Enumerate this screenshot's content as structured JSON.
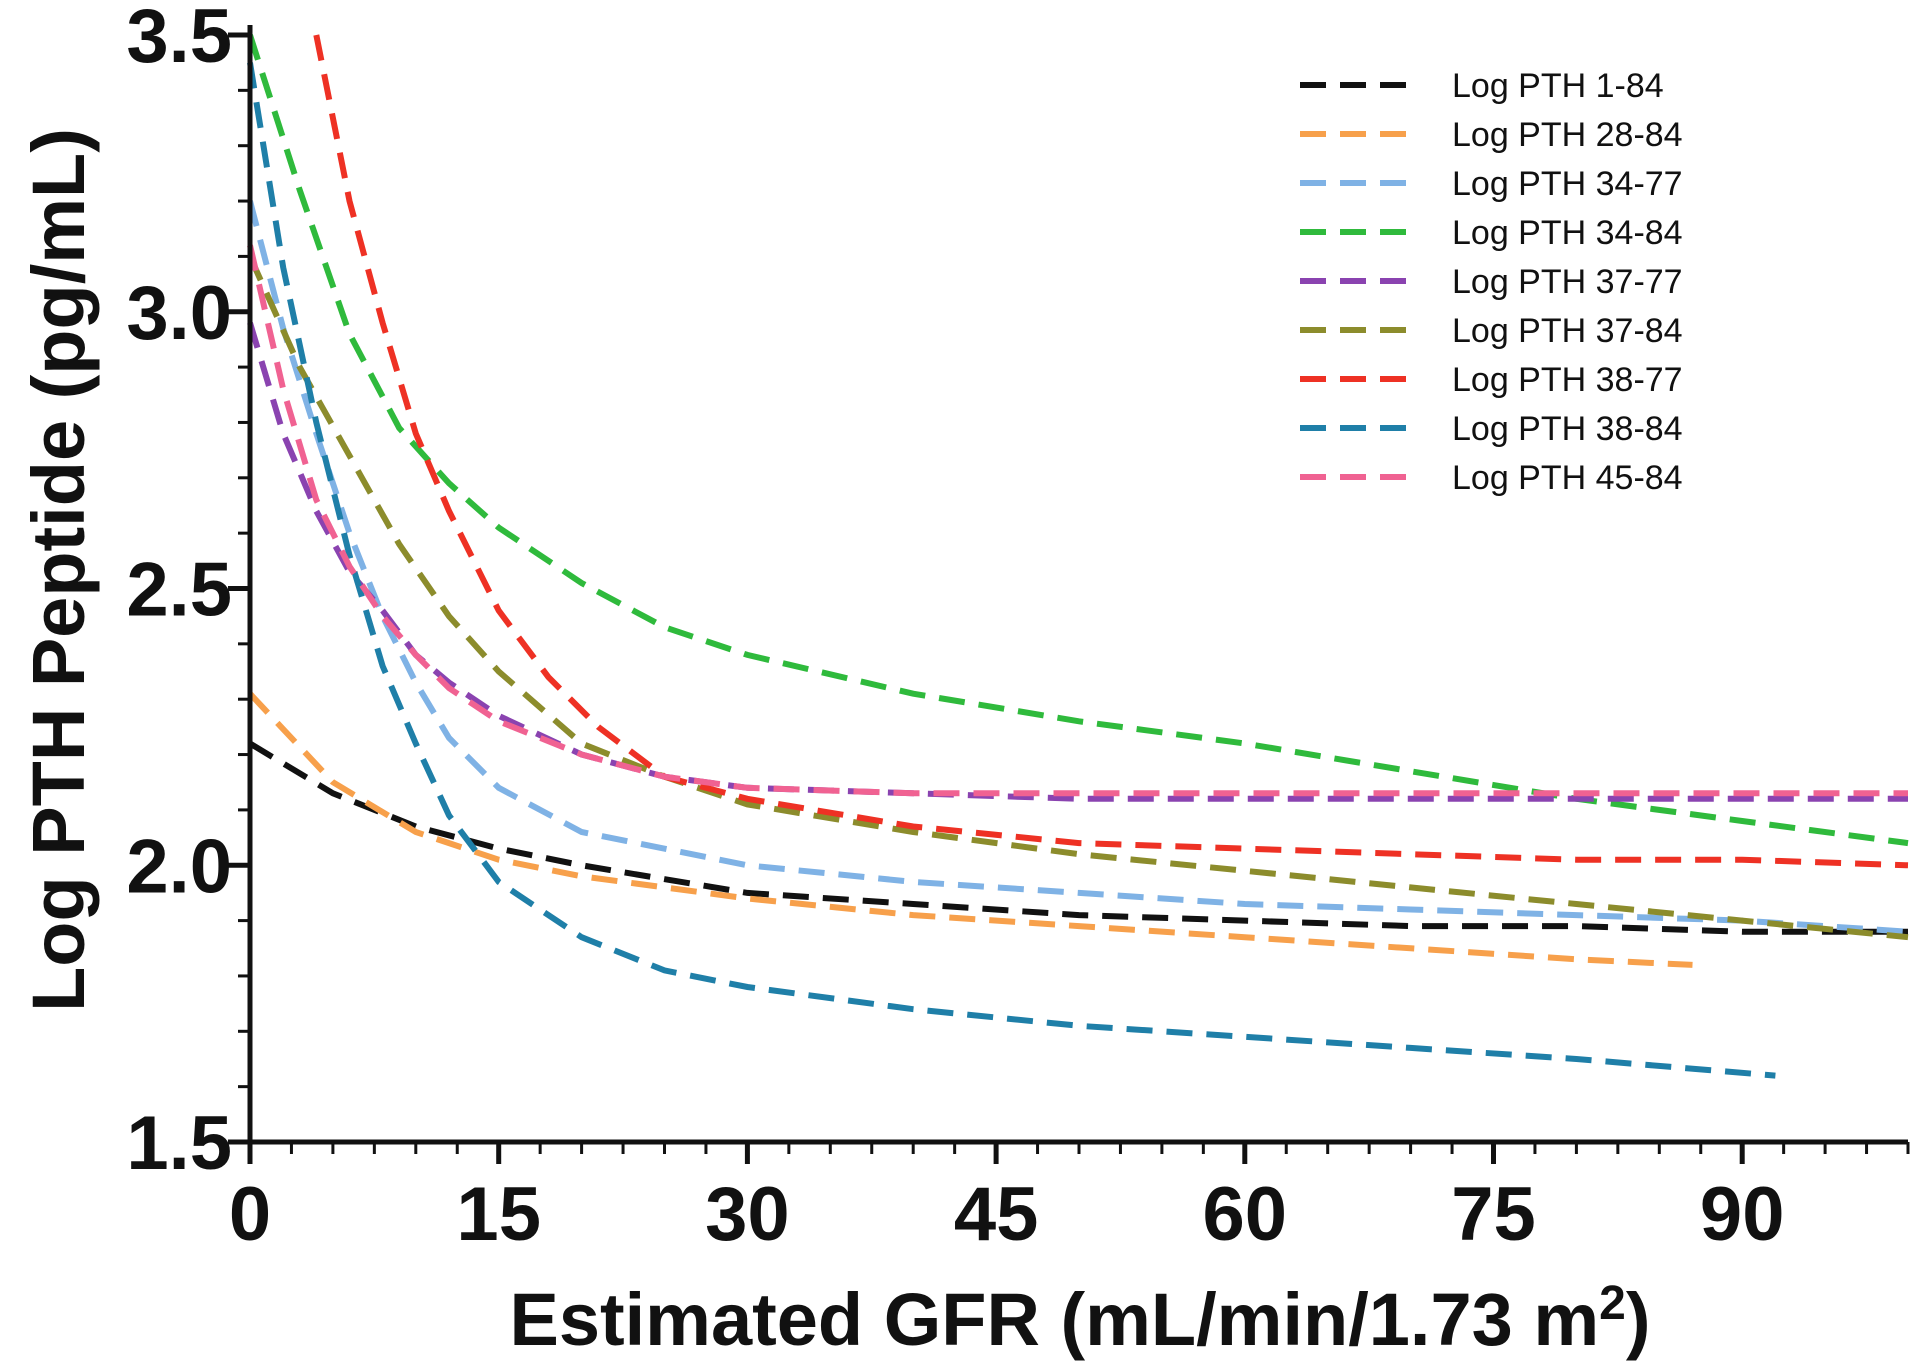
{
  "chart_data": {
    "type": "line",
    "title": "",
    "xlabel": "Estimated GFR (mL/min/1.73 m",
    "xlabel_sup": "2",
    "xlabel_close": ")",
    "ylabel": "Log PTH Peptide (pg/mL)",
    "xlim": [
      0,
      100
    ],
    "ylim": [
      1.5,
      3.5
    ],
    "x_ticks": [
      0,
      15,
      30,
      45,
      60,
      75,
      90
    ],
    "x_tick_labels": [
      "0",
      "15",
      "30",
      "45",
      "60",
      "75",
      "90"
    ],
    "y_ticks": [
      1.5,
      2.0,
      2.5,
      3.0,
      3.5
    ],
    "y_tick_labels": [
      "1.5",
      "2.0",
      "2.5",
      "3.0",
      "3.5"
    ],
    "grid": false,
    "legend_position": "top-right",
    "line_style": "dashed",
    "series": [
      {
        "name": "Log PTH 1-84",
        "color": "#111111",
        "x": [
          0,
          5,
          10,
          15,
          20,
          30,
          40,
          50,
          60,
          70,
          80,
          90,
          100
        ],
        "y": [
          2.22,
          2.13,
          2.07,
          2.03,
          2.0,
          1.95,
          1.93,
          1.91,
          1.9,
          1.89,
          1.89,
          1.88,
          1.88
        ]
      },
      {
        "name": "Log PTH 28-84",
        "color": "#f7a04b",
        "x": [
          0,
          5,
          10,
          15,
          20,
          30,
          40,
          50,
          60,
          70,
          80,
          87
        ],
        "y": [
          2.31,
          2.15,
          2.06,
          2.01,
          1.98,
          1.94,
          1.91,
          1.89,
          1.87,
          1.85,
          1.83,
          1.82
        ]
      },
      {
        "name": "Log PTH 34-77",
        "color": "#7fb2e5",
        "x": [
          0,
          2,
          4,
          6,
          8,
          10,
          12,
          15,
          20,
          30,
          40,
          50,
          60,
          70,
          80,
          90,
          100
        ],
        "y": [
          3.2,
          2.97,
          2.78,
          2.6,
          2.45,
          2.33,
          2.23,
          2.14,
          2.06,
          2.0,
          1.97,
          1.95,
          1.93,
          1.92,
          1.91,
          1.9,
          1.88
        ]
      },
      {
        "name": "Log PTH 34-84",
        "color": "#2fba3c",
        "x": [
          0,
          3,
          6,
          9,
          12,
          15,
          20,
          25,
          30,
          40,
          50,
          60,
          70,
          80,
          90,
          100
        ],
        "y": [
          3.5,
          3.22,
          2.96,
          2.79,
          2.69,
          2.61,
          2.51,
          2.43,
          2.38,
          2.31,
          2.26,
          2.22,
          2.17,
          2.12,
          2.08,
          2.04
        ]
      },
      {
        "name": "Log PTH 37-77",
        "color": "#8a43b0",
        "x": [
          0,
          2,
          4,
          6,
          8,
          10,
          12,
          15,
          20,
          25,
          30,
          40,
          50,
          60,
          70,
          80,
          90,
          100
        ],
        "y": [
          2.98,
          2.78,
          2.64,
          2.53,
          2.46,
          2.38,
          2.33,
          2.27,
          2.2,
          2.16,
          2.14,
          2.13,
          2.12,
          2.12,
          2.12,
          2.12,
          2.12,
          2.12
        ]
      },
      {
        "name": "Log PTH 37-84",
        "color": "#8c8c2c",
        "x": [
          0,
          3,
          6,
          9,
          12,
          15,
          20,
          25,
          30,
          40,
          50,
          60,
          70,
          80,
          90,
          100
        ],
        "y": [
          3.1,
          2.9,
          2.74,
          2.58,
          2.45,
          2.35,
          2.22,
          2.16,
          2.11,
          2.06,
          2.02,
          1.99,
          1.96,
          1.93,
          1.9,
          1.87
        ]
      },
      {
        "name": "Log PTH 38-77",
        "color": "#ee3124",
        "x": [
          4,
          6,
          8,
          10,
          12,
          15,
          18,
          21,
          25,
          30,
          40,
          50,
          60,
          70,
          80,
          90,
          100
        ],
        "y": [
          3.5,
          3.2,
          2.98,
          2.78,
          2.64,
          2.46,
          2.34,
          2.25,
          2.16,
          2.12,
          2.07,
          2.04,
          2.03,
          2.02,
          2.01,
          2.01,
          2.0
        ]
      },
      {
        "name": "Log PTH 38-84",
        "color": "#1f7fa8",
        "x": [
          0,
          2,
          4,
          6,
          8,
          10,
          12,
          15,
          20,
          25,
          30,
          40,
          50,
          60,
          70,
          80,
          92
        ],
        "y": [
          3.45,
          3.08,
          2.8,
          2.56,
          2.36,
          2.22,
          2.09,
          1.97,
          1.87,
          1.81,
          1.78,
          1.74,
          1.71,
          1.69,
          1.67,
          1.65,
          1.62
        ]
      },
      {
        "name": "Log PTH 45-84",
        "color": "#f06292",
        "x": [
          0,
          2,
          4,
          6,
          8,
          10,
          12,
          15,
          20,
          25,
          30,
          40,
          50,
          60,
          70,
          80,
          90,
          100
        ],
        "y": [
          3.12,
          2.86,
          2.66,
          2.54,
          2.45,
          2.38,
          2.32,
          2.26,
          2.2,
          2.16,
          2.14,
          2.13,
          2.13,
          2.13,
          2.13,
          2.13,
          2.13,
          2.13
        ]
      }
    ]
  }
}
